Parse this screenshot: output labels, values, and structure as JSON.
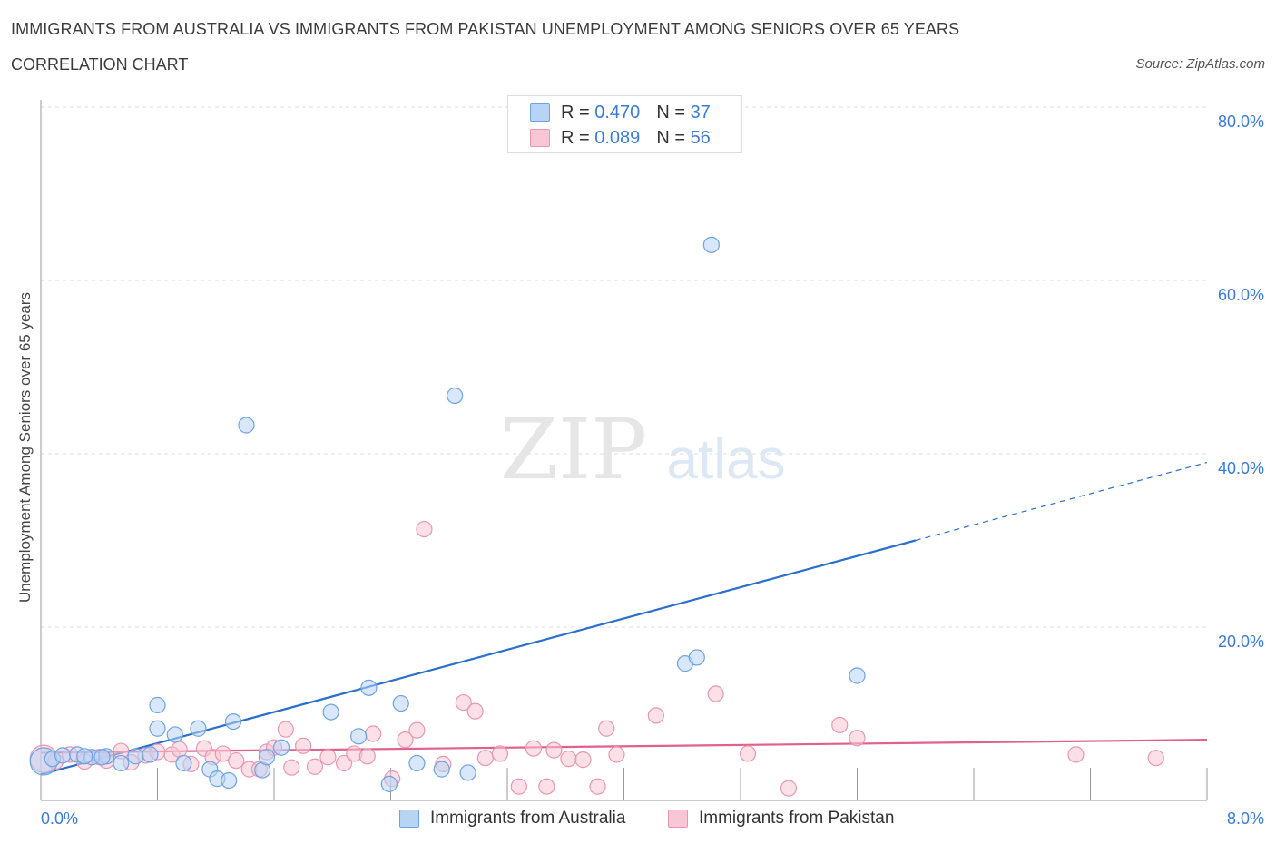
{
  "title": "IMMIGRANTS FROM AUSTRALIA VS IMMIGRANTS FROM PAKISTAN UNEMPLOYMENT AMONG SENIORS OVER 65 YEARS",
  "subtitle": "CORRELATION CHART",
  "source": "Source: ZipAtlas.com",
  "watermark": {
    "zip": "ZIP",
    "atlas": "atlas"
  },
  "legend": {
    "r_label": "R =",
    "n_label": "N =",
    "rows": [
      {
        "r": "0.470",
        "n": "37"
      },
      {
        "r": "0.089",
        "n": "56"
      }
    ]
  },
  "colors": {
    "australia_fill": "#b8d4f5",
    "australia_stroke": "#6fa3e0",
    "australia_line": "#2a6fcc",
    "pakistan_fill": "#f9c6d6",
    "pakistan_stroke": "#e897b2",
    "pakistan_line": "#e0608e",
    "tick_label": "#3a7bd5",
    "grid": "#dddddd"
  },
  "chart_data": {
    "type": "scatter",
    "title": "IMMIGRANTS FROM AUSTRALIA VS IMMIGRANTS FROM PAKISTAN UNEMPLOYMENT AMONG SENIORS OVER 65 YEARS",
    "xlabel": "",
    "ylabel": "Unemployment Among Seniors over 65 years",
    "xlim": [
      0,
      8
    ],
    "ylim": [
      0,
      80
    ],
    "x_tick_labels": [
      "0.0%",
      "8.0%"
    ],
    "y_ticks": [
      20,
      40,
      60,
      80
    ],
    "y_tick_labels": [
      "20.0%",
      "40.0%",
      "60.0%",
      "80.0%"
    ],
    "grid": true,
    "series": [
      {
        "name": "Immigrants from Australia",
        "r": 0.47,
        "n": 37,
        "trend": {
          "x0": 0,
          "y0": 3.0,
          "x1": 6.0,
          "y1": 30.0,
          "dashed_to_x": 8.0,
          "dashed_to_y": 39.0
        },
        "points": [
          [
            0.02,
            4.5,
            "L"
          ],
          [
            0.08,
            4.8
          ],
          [
            0.15,
            5.2
          ],
          [
            0.25,
            5.3
          ],
          [
            0.35,
            5.0
          ],
          [
            0.45,
            5.1
          ],
          [
            0.55,
            4.3
          ],
          [
            0.65,
            5.1
          ],
          [
            0.75,
            5.3
          ],
          [
            0.8,
            8.3
          ],
          [
            0.8,
            11.0
          ],
          [
            0.92,
            7.6
          ],
          [
            0.98,
            4.3
          ],
          [
            1.08,
            8.3
          ],
          [
            1.16,
            3.6
          ],
          [
            1.21,
            2.5
          ],
          [
            1.29,
            2.3
          ],
          [
            1.32,
            9.1
          ],
          [
            1.41,
            43.3
          ],
          [
            1.52,
            3.5
          ],
          [
            1.55,
            5.0
          ],
          [
            1.65,
            6.1
          ],
          [
            1.99,
            10.2
          ],
          [
            2.18,
            7.4
          ],
          [
            2.25,
            13.0
          ],
          [
            2.39,
            1.9
          ],
          [
            2.47,
            11.2
          ],
          [
            2.58,
            4.3
          ],
          [
            2.75,
            3.6
          ],
          [
            2.84,
            46.7
          ],
          [
            2.93,
            3.2
          ],
          [
            4.42,
            15.8
          ],
          [
            4.5,
            16.5
          ],
          [
            4.6,
            64.1
          ],
          [
            5.6,
            14.4
          ],
          [
            0.3,
            5.1
          ],
          [
            0.42,
            5.0
          ]
        ]
      },
      {
        "name": "Immigrants from Pakistan",
        "r": 0.089,
        "n": 56,
        "trend": {
          "x0": 0,
          "y0": 5.5,
          "x1": 8.0,
          "y1": 7.0
        },
        "points": [
          [
            0.02,
            4.8,
            "L"
          ],
          [
            0.1,
            4.5
          ],
          [
            0.2,
            5.3
          ],
          [
            0.3,
            4.5
          ],
          [
            0.4,
            5.0
          ],
          [
            0.45,
            4.6
          ],
          [
            0.55,
            5.7
          ],
          [
            0.62,
            4.4
          ],
          [
            0.72,
            5.2
          ],
          [
            0.8,
            5.6
          ],
          [
            0.9,
            5.3
          ],
          [
            0.95,
            5.9
          ],
          [
            1.03,
            4.2
          ],
          [
            1.12,
            6.0
          ],
          [
            1.18,
            5.0
          ],
          [
            1.25,
            5.4
          ],
          [
            1.34,
            4.6
          ],
          [
            1.43,
            3.6
          ],
          [
            1.5,
            3.6
          ],
          [
            1.55,
            5.6
          ],
          [
            1.6,
            6.1
          ],
          [
            1.68,
            8.2
          ],
          [
            1.72,
            3.8
          ],
          [
            1.8,
            6.3
          ],
          [
            1.88,
            3.9
          ],
          [
            1.97,
            5.0
          ],
          [
            2.08,
            4.3
          ],
          [
            2.15,
            5.4
          ],
          [
            2.24,
            5.1
          ],
          [
            2.28,
            7.7
          ],
          [
            2.41,
            2.5
          ],
          [
            2.5,
            7.0
          ],
          [
            2.58,
            8.1
          ],
          [
            2.63,
            31.3
          ],
          [
            2.76,
            4.2
          ],
          [
            2.9,
            11.3
          ],
          [
            2.98,
            10.3
          ],
          [
            3.05,
            4.9
          ],
          [
            3.15,
            5.4
          ],
          [
            3.28,
            1.6
          ],
          [
            3.38,
            6.0
          ],
          [
            3.47,
            1.6
          ],
          [
            3.52,
            5.8
          ],
          [
            3.62,
            4.8
          ],
          [
            3.72,
            4.7
          ],
          [
            3.82,
            1.6
          ],
          [
            3.88,
            8.3
          ],
          [
            3.95,
            5.3
          ],
          [
            4.22,
            9.8
          ],
          [
            4.63,
            12.3
          ],
          [
            4.85,
            5.4
          ],
          [
            5.13,
            1.4
          ],
          [
            5.48,
            8.7
          ],
          [
            5.6,
            7.2
          ],
          [
            7.1,
            5.3
          ],
          [
            7.65,
            4.9
          ]
        ]
      }
    ]
  },
  "bottom_legend": [
    "Immigrants from Australia",
    "Immigrants from Pakistan"
  ]
}
